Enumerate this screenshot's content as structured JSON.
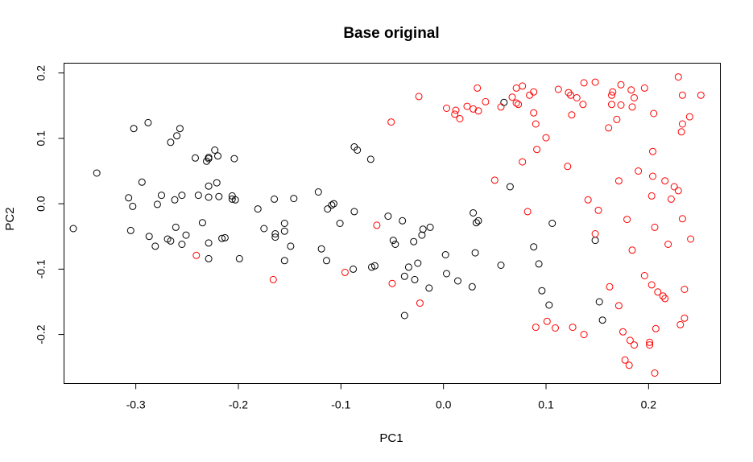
{
  "chart_data": {
    "type": "scatter",
    "title": "Base original",
    "xlabel": "PC1",
    "ylabel": "PC2",
    "xlim": [
      -0.37,
      0.27
    ],
    "ylim": [
      -0.275,
      0.215
    ],
    "x_ticks": [
      -0.3,
      -0.2,
      -0.1,
      0.0,
      0.1,
      0.2
    ],
    "x_tick_labels": [
      "-0.3",
      "-0.2",
      "-0.1",
      "0.0",
      "0.1",
      "0.2"
    ],
    "y_ticks": [
      -0.2,
      -0.1,
      0.0,
      0.1,
      0.2
    ],
    "y_tick_labels": [
      "-0.2",
      "-0.1",
      "0.0",
      "0.1",
      "0.2"
    ],
    "grid": false,
    "marker": "open-circle",
    "series": [
      {
        "color": "#000000",
        "points": [
          [
            -0.361,
            -0.038
          ],
          [
            -0.338,
            0.047
          ],
          [
            -0.307,
            0.009
          ],
          [
            -0.303,
            -0.004
          ],
          [
            -0.305,
            -0.041
          ],
          [
            -0.302,
            0.115
          ],
          [
            -0.294,
            0.033
          ],
          [
            -0.288,
            0.124
          ],
          [
            -0.287,
            -0.05
          ],
          [
            -0.281,
            -0.065
          ],
          [
            -0.279,
            -0.001
          ],
          [
            -0.275,
            0.013
          ],
          [
            -0.269,
            -0.054
          ],
          [
            -0.266,
            -0.057
          ],
          [
            -0.266,
            0.094
          ],
          [
            -0.262,
            0.006
          ],
          [
            -0.261,
            -0.036
          ],
          [
            -0.26,
            0.104
          ],
          [
            -0.257,
            0.115
          ],
          [
            -0.255,
            0.013
          ],
          [
            -0.255,
            -0.062
          ],
          [
            -0.251,
            -0.048
          ],
          [
            -0.242,
            0.07
          ],
          [
            -0.239,
            0.013
          ],
          [
            -0.235,
            -0.029
          ],
          [
            -0.231,
            0.065
          ],
          [
            -0.229,
            0.071
          ],
          [
            -0.229,
            0.069
          ],
          [
            -0.229,
            0.027
          ],
          [
            -0.229,
            0.01
          ],
          [
            -0.229,
            -0.06
          ],
          [
            -0.229,
            -0.084
          ],
          [
            -0.223,
            0.082
          ],
          [
            -0.221,
            0.032
          ],
          [
            -0.22,
            0.073
          ],
          [
            -0.219,
            0.011
          ],
          [
            -0.216,
            -0.053
          ],
          [
            -0.213,
            -0.052
          ],
          [
            -0.206,
            0.012
          ],
          [
            -0.206,
            0.007
          ],
          [
            -0.204,
            0.069
          ],
          [
            -0.203,
            0.006
          ],
          [
            -0.199,
            -0.084
          ],
          [
            -0.181,
            -0.008
          ],
          [
            -0.175,
            -0.038
          ],
          [
            -0.165,
            0.007
          ],
          [
            -0.164,
            -0.046
          ],
          [
            -0.164,
            -0.051
          ],
          [
            -0.155,
            -0.03
          ],
          [
            -0.155,
            -0.042
          ],
          [
            -0.155,
            -0.087
          ],
          [
            -0.149,
            -0.065
          ],
          [
            -0.146,
            0.008
          ],
          [
            -0.122,
            0.018
          ],
          [
            -0.119,
            -0.069
          ],
          [
            -0.114,
            -0.087
          ],
          [
            -0.113,
            -0.008
          ],
          [
            -0.109,
            -0.002
          ],
          [
            -0.107,
            0.0
          ],
          [
            -0.101,
            -0.03
          ],
          [
            -0.088,
            -0.1
          ],
          [
            -0.087,
            0.087
          ],
          [
            -0.087,
            -0.012
          ],
          [
            -0.084,
            0.082
          ],
          [
            -0.071,
            0.068
          ],
          [
            -0.07,
            -0.097
          ],
          [
            -0.067,
            -0.095
          ],
          [
            -0.054,
            -0.019
          ],
          [
            -0.049,
            -0.056
          ],
          [
            -0.047,
            -0.062
          ],
          [
            -0.04,
            -0.026
          ],
          [
            -0.038,
            -0.111
          ],
          [
            -0.038,
            -0.171
          ],
          [
            -0.034,
            -0.097
          ],
          [
            -0.029,
            -0.058
          ],
          [
            -0.028,
            -0.116
          ],
          [
            -0.025,
            -0.091
          ],
          [
            -0.021,
            -0.048
          ],
          [
            -0.02,
            -0.039
          ],
          [
            -0.014,
            -0.129
          ],
          [
            -0.013,
            -0.036
          ],
          [
            0.002,
            -0.078
          ],
          [
            0.003,
            -0.107
          ],
          [
            0.014,
            -0.118
          ],
          [
            0.029,
            -0.014
          ],
          [
            0.028,
            -0.127
          ],
          [
            0.031,
            -0.075
          ],
          [
            0.032,
            -0.029
          ],
          [
            0.034,
            -0.026
          ],
          [
            0.056,
            -0.094
          ],
          [
            0.059,
            0.155
          ],
          [
            0.065,
            0.026
          ],
          [
            0.088,
            -0.066
          ],
          [
            0.093,
            -0.092
          ],
          [
            0.096,
            -0.133
          ],
          [
            0.103,
            -0.155
          ],
          [
            0.106,
            -0.03
          ],
          [
            0.148,
            -0.056
          ],
          [
            0.152,
            -0.15
          ],
          [
            0.155,
            -0.178
          ]
        ]
      },
      {
        "color": "#ff0000",
        "points": [
          [
            -0.241,
            -0.079
          ],
          [
            -0.166,
            -0.116
          ],
          [
            -0.096,
            -0.105
          ],
          [
            -0.065,
            -0.033
          ],
          [
            -0.051,
            0.125
          ],
          [
            -0.05,
            -0.122
          ],
          [
            -0.024,
            0.164
          ],
          [
            -0.023,
            -0.152
          ],
          [
            0.003,
            0.146
          ],
          [
            0.011,
            0.137
          ],
          [
            0.012,
            0.143
          ],
          [
            0.016,
            0.13
          ],
          [
            0.023,
            0.149
          ],
          [
            0.029,
            0.145
          ],
          [
            0.033,
            0.177
          ],
          [
            0.034,
            0.142
          ],
          [
            0.041,
            0.156
          ],
          [
            0.05,
            0.036
          ],
          [
            0.056,
            0.148
          ],
          [
            0.067,
            0.163
          ],
          [
            0.071,
            0.177
          ],
          [
            0.071,
            0.154
          ],
          [
            0.073,
            0.152
          ],
          [
            0.077,
            0.18
          ],
          [
            0.077,
            0.064
          ],
          [
            0.082,
            -0.012
          ],
          [
            0.084,
            0.166
          ],
          [
            0.088,
            0.171
          ],
          [
            0.088,
            0.139
          ],
          [
            0.09,
            0.122
          ],
          [
            0.091,
            0.083
          ],
          [
            0.09,
            -0.189
          ],
          [
            0.1,
            0.101
          ],
          [
            0.101,
            -0.18
          ],
          [
            0.109,
            -0.19
          ],
          [
            0.112,
            0.175
          ],
          [
            0.121,
            0.057
          ],
          [
            0.122,
            0.17
          ],
          [
            0.124,
            0.166
          ],
          [
            0.125,
            0.136
          ],
          [
            0.126,
            -0.189
          ],
          [
            0.13,
            0.162
          ],
          [
            0.136,
            0.152
          ],
          [
            0.137,
            0.185
          ],
          [
            0.137,
            -0.2
          ],
          [
            0.141,
            0.006
          ],
          [
            0.148,
            0.186
          ],
          [
            0.148,
            -0.046
          ],
          [
            0.151,
            -0.01
          ],
          [
            0.161,
            0.116
          ],
          [
            0.162,
            -0.127
          ],
          [
            0.164,
            0.166
          ],
          [
            0.164,
            0.152
          ],
          [
            0.165,
            0.171
          ],
          [
            0.169,
            0.129
          ],
          [
            0.171,
            -0.156
          ],
          [
            0.171,
            0.035
          ],
          [
            0.173,
            0.182
          ],
          [
            0.173,
            0.151
          ],
          [
            0.175,
            -0.196
          ],
          [
            0.177,
            -0.239
          ],
          [
            0.179,
            -0.024
          ],
          [
            0.181,
            -0.247
          ],
          [
            0.182,
            -0.209
          ],
          [
            0.183,
            0.174
          ],
          [
            0.184,
            0.148
          ],
          [
            0.184,
            -0.071
          ],
          [
            0.186,
            0.162
          ],
          [
            0.186,
            -0.216
          ],
          [
            0.19,
            0.05
          ],
          [
            0.196,
            0.177
          ],
          [
            0.196,
            -0.11
          ],
          [
            0.201,
            -0.212
          ],
          [
            0.201,
            -0.216
          ],
          [
            0.203,
            0.012
          ],
          [
            0.203,
            -0.124
          ],
          [
            0.204,
            0.08
          ],
          [
            0.204,
            0.042
          ],
          [
            0.205,
            0.138
          ],
          [
            0.206,
            -0.259
          ],
          [
            0.206,
            -0.036
          ],
          [
            0.207,
            -0.191
          ],
          [
            0.209,
            -0.135
          ],
          [
            0.214,
            -0.141
          ],
          [
            0.216,
            -0.145
          ],
          [
            0.216,
            0.035
          ],
          [
            0.219,
            -0.062
          ],
          [
            0.222,
            0.007
          ],
          [
            0.225,
            0.026
          ],
          [
            0.229,
            0.194
          ],
          [
            0.229,
            0.02
          ],
          [
            0.231,
            -0.185
          ],
          [
            0.232,
            0.11
          ],
          [
            0.233,
            0.122
          ],
          [
            0.233,
            0.166
          ],
          [
            0.233,
            -0.023
          ],
          [
            0.235,
            -0.175
          ],
          [
            0.235,
            -0.131
          ],
          [
            0.24,
            0.133
          ],
          [
            0.241,
            -0.054
          ],
          [
            0.251,
            0.166
          ]
        ]
      }
    ]
  }
}
